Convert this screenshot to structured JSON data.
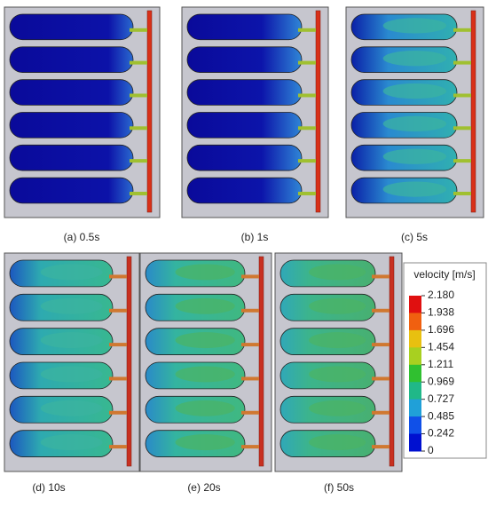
{
  "panels": [
    {
      "caption": "(a) 0.5s"
    },
    {
      "caption": "(b) 1s"
    },
    {
      "caption": "(c) 5s"
    },
    {
      "caption": "(d) 10s"
    },
    {
      "caption": "(e) 20s"
    },
    {
      "caption": "(f) 50s"
    }
  ],
  "colorbar": {
    "title": "velocity [m/s]",
    "labels": [
      "2.180",
      "1.938",
      "1.696",
      "1.454",
      "1.211",
      "0.969",
      "0.727",
      "0.485",
      "0.242",
      "0"
    ]
  }
}
